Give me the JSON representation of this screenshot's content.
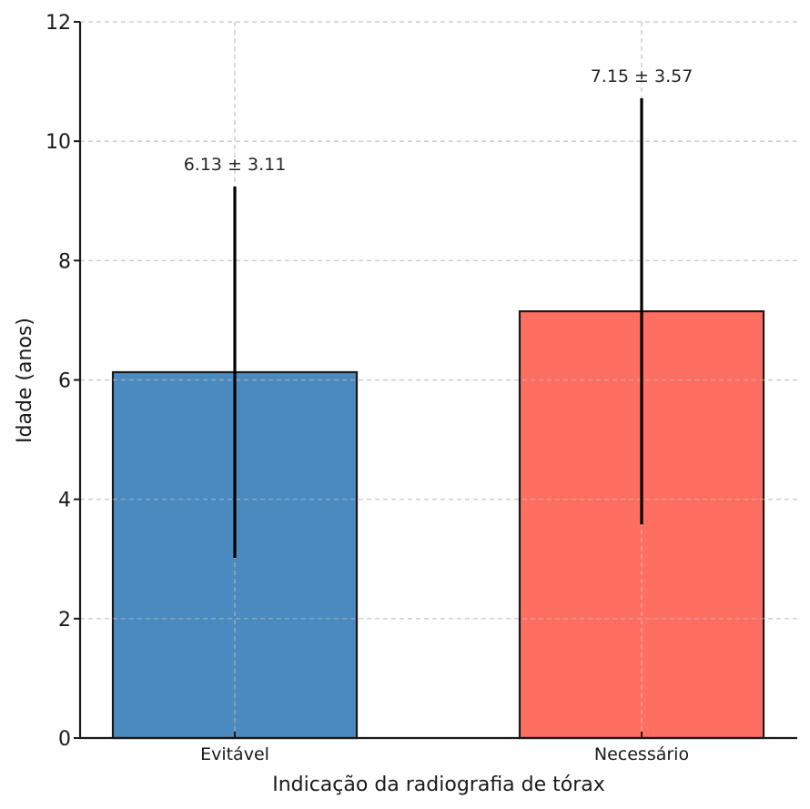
{
  "chart_data": {
    "type": "bar",
    "title": "",
    "xlabel": "Indicação da radiografia de tórax",
    "ylabel": "Idade (anos)",
    "categories": [
      "Evitável",
      "Necessário"
    ],
    "values": [
      6.13,
      7.15
    ],
    "errors": [
      3.11,
      3.57
    ],
    "annotations": [
      "6.13 ± 3.11",
      "7.15 ± 3.57"
    ],
    "colors": [
      "#4b8abe",
      "#ff6f61"
    ],
    "ylim": [
      0,
      12
    ],
    "yticks": [
      0,
      2,
      4,
      6,
      8,
      10,
      12
    ],
    "ytick_labels": [
      "0",
      "2",
      "4",
      "6",
      "8",
      "10",
      "12"
    ],
    "grid": true,
    "legend": "none"
  }
}
